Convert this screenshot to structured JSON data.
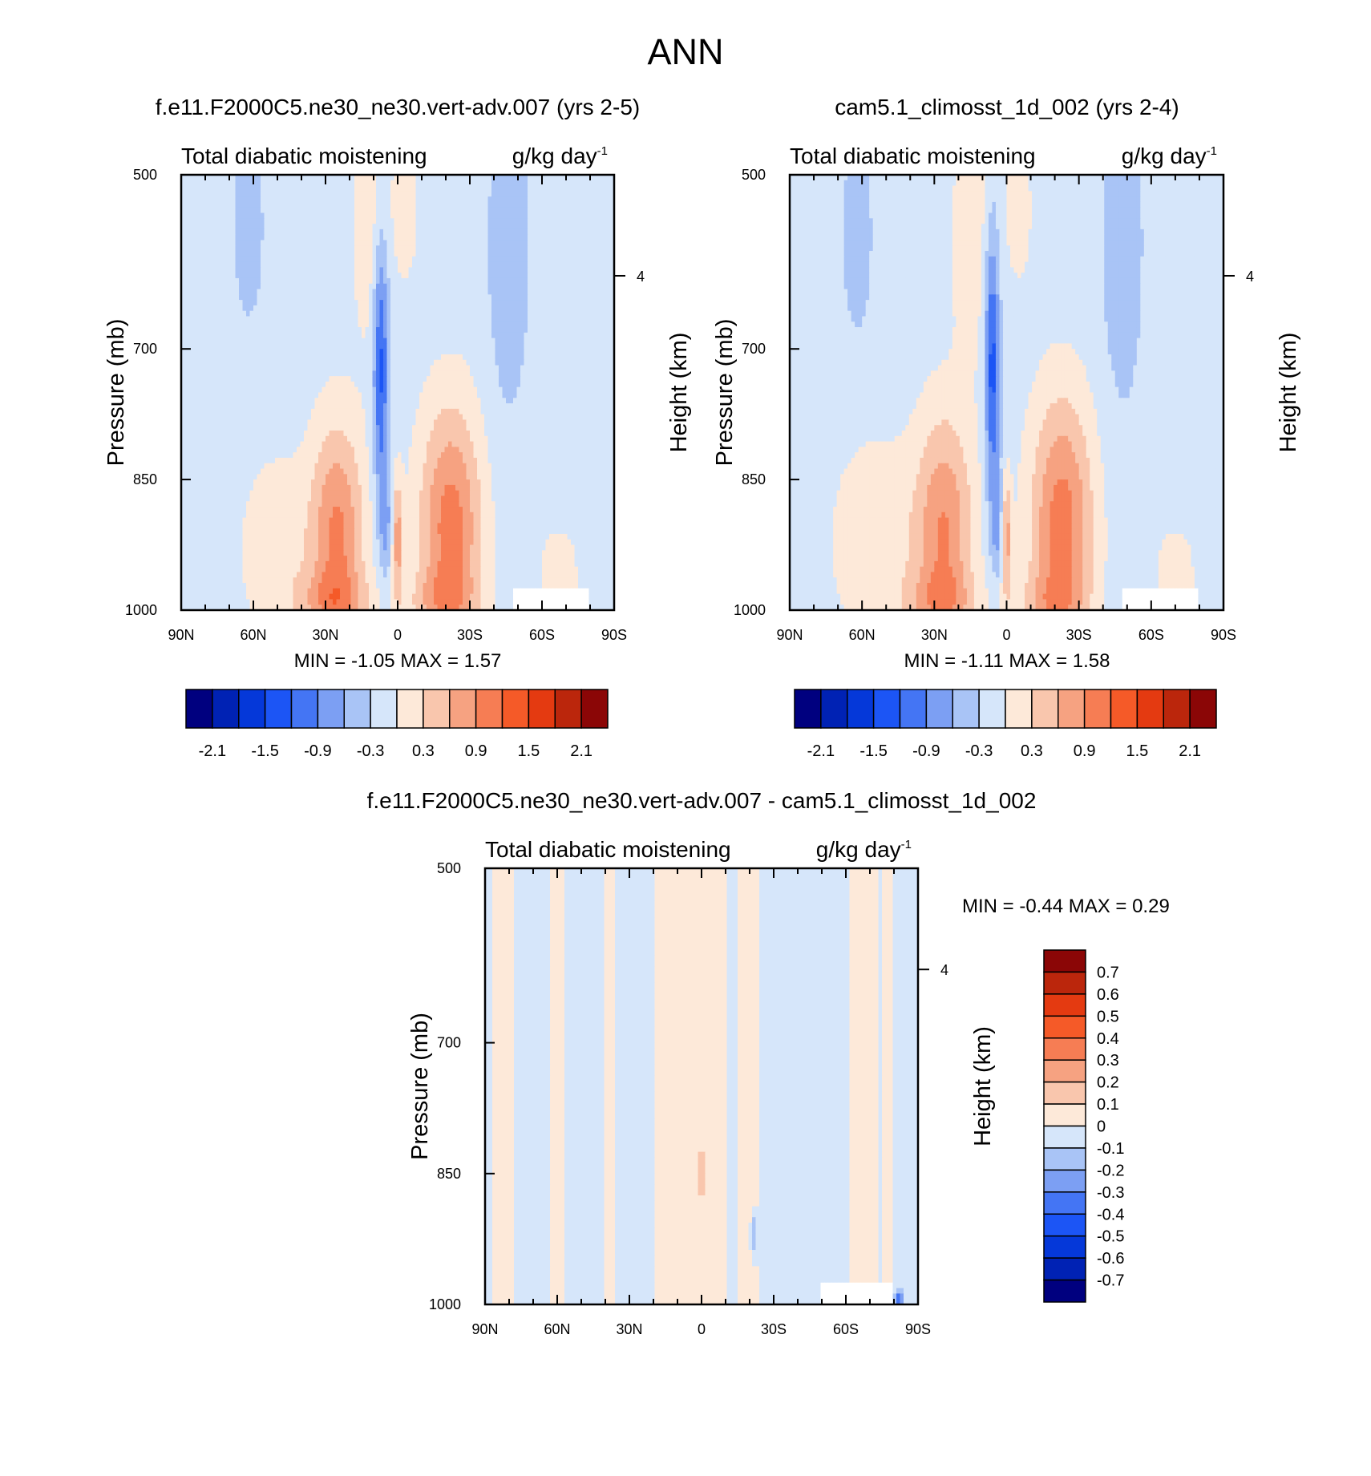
{
  "page_title": "ANN",
  "colors": {
    "palette16": [
      "#00007f",
      "#0022b4",
      "#0538d9",
      "#1c55f5",
      "#4475f4",
      "#7c9ff3",
      "#a9c4f6",
      "#d6e6fa",
      "#fde9d9",
      "#f9c6ad",
      "#f6a281",
      "#f67d54",
      "#f55a28",
      "#e43a11",
      "#bb260c",
      "#8b0606"
    ],
    "palette14": [
      "#00007f",
      "#0022b4",
      "#0538d9",
      "#1c55f5",
      "#4475f4",
      "#7c9ff3",
      "#a9c4f6",
      "#d6e6fa",
      "#fde9d9",
      "#f9c6ad",
      "#f6a281",
      "#f67d54",
      "#f55a28",
      "#c22a0b",
      "#8b0606"
    ]
  },
  "chart_data": [
    {
      "type": "heatmap",
      "title": "f.e11.F2000C5.ne30_ne30.vert-adv.007 (yrs 2-5)",
      "left_label": "Total diabatic moistening",
      "units_label": "g/kg day",
      "units_exponent": "-1",
      "ylabel": "Pressure (mb)",
      "ylabel_right": "Height (km)",
      "y_tick_labels": [
        "500",
        "700",
        "850",
        "1000"
      ],
      "y_ticks_mb": [
        500,
        700,
        850,
        1000
      ],
      "ylim_mb": [
        500,
        1000
      ],
      "height_ticks_km": [
        4
      ],
      "height_tick_labels": [
        "4"
      ],
      "x_tick_labels": [
        "90N",
        "60N",
        "30N",
        "0",
        "30S",
        "60S",
        "90S"
      ],
      "x_ticks_lat": [
        90,
        60,
        30,
        0,
        -30,
        -60,
        -90
      ],
      "xlim_lat": [
        90,
        -90
      ],
      "min_label": "MIN =",
      "min_value": "-1.05",
      "max_label": "MAX =",
      "max_value": "1.57",
      "min": -1.05,
      "max": 1.57,
      "colorbar_levels": [
        -2.1,
        -1.8,
        -1.5,
        -1.2,
        -0.9,
        -0.6,
        -0.3,
        0,
        0.3,
        0.6,
        0.9,
        1.2,
        1.5,
        1.8,
        2.1
      ],
      "colorbar_labels": [
        "-2.1",
        "-1.5",
        "-0.9",
        "-0.3",
        "0.3",
        "0.9",
        "1.5",
        "2.1"
      ],
      "field": {
        "base": -0.15,
        "blobs": [
          {
            "lat": 25,
            "mb": 915,
            "wlat": 11,
            "wmb": 130,
            "amp": 1.1
          },
          {
            "lat": -22,
            "mb": 905,
            "wlat": 13,
            "wmb": 140,
            "amp": 1.2
          },
          {
            "lat": 27,
            "mb": 990,
            "wlat": 16,
            "wmb": 35,
            "amp": 0.55
          },
          {
            "lat": -18,
            "mb": 990,
            "wlat": 14,
            "wmb": 35,
            "amp": 0.45
          },
          {
            "lat": 7,
            "mb": 720,
            "wlat": 3.2,
            "wmb": 150,
            "amp": -1.15
          },
          {
            "lat": 5,
            "mb": 900,
            "wlat": 2.5,
            "wmb": 60,
            "amp": -0.55
          },
          {
            "lat": 0,
            "mb": 920,
            "wlat": 2,
            "wmb": 70,
            "amp": 0.9
          },
          {
            "lat": 12,
            "mb": 560,
            "wlat": 7,
            "wmb": 140,
            "amp": 0.35
          },
          {
            "lat": -3,
            "mb": 540,
            "wlat": 6,
            "wmb": 90,
            "amp": 0.3
          },
          {
            "lat": 50,
            "mb": 930,
            "wlat": 16,
            "wmb": 110,
            "amp": 0.35
          },
          {
            "lat": -46,
            "mb": 590,
            "wlat": 9,
            "wmb": 200,
            "amp": -0.35
          },
          {
            "lat": 62,
            "mb": 560,
            "wlat": 7,
            "wmb": 120,
            "amp": -0.3
          },
          {
            "lat": -67,
            "mb": 960,
            "wlat": 9,
            "wmb": 60,
            "amp": 0.3
          }
        ],
        "mask": {
          "lat_min": -48,
          "lat_max": -80,
          "mb_min": 975
        }
      }
    },
    {
      "type": "heatmap",
      "title": "cam5.1_climosst_1d_002 (yrs 2-4)",
      "left_label": "Total diabatic moistening",
      "units_label": "g/kg day",
      "units_exponent": "-1",
      "ylabel": "Pressure (mb)",
      "ylabel_right": "Height (km)",
      "y_tick_labels": [
        "500",
        "700",
        "850",
        "1000"
      ],
      "y_ticks_mb": [
        500,
        700,
        850,
        1000
      ],
      "ylim_mb": [
        500,
        1000
      ],
      "height_ticks_km": [
        4
      ],
      "height_tick_labels": [
        "4"
      ],
      "x_tick_labels": [
        "90N",
        "60N",
        "30N",
        "0",
        "30S",
        "60S",
        "90S"
      ],
      "x_ticks_lat": [
        90,
        60,
        30,
        0,
        -30,
        -60,
        -90
      ],
      "xlim_lat": [
        90,
        -90
      ],
      "min_label": "MIN =",
      "min_value": "-1.11",
      "max_label": "MAX =",
      "max_value": "1.58",
      "min": -1.11,
      "max": 1.58,
      "colorbar_levels": [
        -2.1,
        -1.8,
        -1.5,
        -1.2,
        -0.9,
        -0.6,
        -0.3,
        0,
        0.3,
        0.6,
        0.9,
        1.2,
        1.5,
        1.8,
        2.1
      ],
      "colorbar_labels": [
        "-2.1",
        "-1.5",
        "-0.9",
        "-0.3",
        "0.3",
        "0.9",
        "1.5",
        "2.1"
      ],
      "field": {
        "base": -0.15,
        "blobs": [
          {
            "lat": 26,
            "mb": 910,
            "wlat": 12,
            "wmb": 135,
            "amp": 1.05
          },
          {
            "lat": -23,
            "mb": 900,
            "wlat": 13,
            "wmb": 145,
            "amp": 1.2
          },
          {
            "lat": 28,
            "mb": 990,
            "wlat": 16,
            "wmb": 35,
            "amp": 0.5
          },
          {
            "lat": -18,
            "mb": 990,
            "wlat": 14,
            "wmb": 35,
            "amp": 0.45
          },
          {
            "lat": 6,
            "mb": 720,
            "wlat": 3,
            "wmb": 150,
            "amp": -1.2
          },
          {
            "lat": 4,
            "mb": 900,
            "wlat": 2.5,
            "wmb": 60,
            "amp": -0.55
          },
          {
            "lat": 0,
            "mb": 920,
            "wlat": 2,
            "wmb": 70,
            "amp": 0.85
          },
          {
            "lat": 15,
            "mb": 570,
            "wlat": 8,
            "wmb": 150,
            "amp": 0.35
          },
          {
            "lat": -5,
            "mb": 540,
            "wlat": 6,
            "wmb": 90,
            "amp": 0.3
          },
          {
            "lat": 55,
            "mb": 920,
            "wlat": 18,
            "wmb": 120,
            "amp": 0.38
          },
          {
            "lat": -48,
            "mb": 580,
            "wlat": 9,
            "wmb": 200,
            "amp": -0.35
          },
          {
            "lat": 62,
            "mb": 570,
            "wlat": 7,
            "wmb": 130,
            "amp": -0.3
          },
          {
            "lat": -70,
            "mb": 960,
            "wlat": 9,
            "wmb": 60,
            "amp": 0.3
          }
        ],
        "mask": {
          "lat_min": -48,
          "lat_max": -80,
          "mb_min": 975
        }
      }
    },
    {
      "type": "heatmap",
      "title": "f.e11.F2000C5.ne30_ne30.vert-adv.007 - cam5.1_climosst_1d_002",
      "left_label": "Total diabatic moistening",
      "units_label": "g/kg day",
      "units_exponent": "-1",
      "ylabel": "Pressure (mb)",
      "ylabel_right": "Height (km)",
      "y_tick_labels": [
        "500",
        "700",
        "850",
        "1000"
      ],
      "y_ticks_mb": [
        500,
        700,
        850,
        1000
      ],
      "ylim_mb": [
        500,
        1000
      ],
      "height_ticks_km": [
        4
      ],
      "height_tick_labels": [
        "4"
      ],
      "x_tick_labels": [
        "90N",
        "60N",
        "30N",
        "0",
        "30S",
        "60S",
        "90S"
      ],
      "x_ticks_lat": [
        90,
        60,
        30,
        0,
        -30,
        -60,
        -90
      ],
      "xlim_lat": [
        90,
        -90
      ],
      "min_label": "MIN =",
      "min_value": "-0.44",
      "max_label": "MAX =",
      "max_value": "0.29",
      "min": -0.44,
      "max": 0.29,
      "colorbar_levels": [
        -0.7,
        -0.6,
        -0.5,
        -0.4,
        -0.3,
        -0.2,
        -0.1,
        0,
        0.1,
        0.2,
        0.3,
        0.4,
        0.5,
        0.6,
        0.7
      ],
      "colorbar_labels": [
        "-0.7",
        "-0.6",
        "-0.5",
        "-0.4",
        "-0.3",
        "-0.2",
        "-0.1",
        "0",
        "0.1",
        "0.2",
        "0.3",
        "0.4",
        "0.5",
        "0.6",
        "0.7"
      ],
      "field": {
        "base": -0.03,
        "bands": [
          {
            "lat": 82,
            "w": 5,
            "amp": 0.07
          },
          {
            "lat": 60,
            "w": 3,
            "amp": 0.06
          },
          {
            "lat": 38,
            "w": 2.5,
            "amp": 0.07
          },
          {
            "lat": 15,
            "w": 5,
            "amp": 0.08
          },
          {
            "lat": 7,
            "w": 2,
            "amp": 0.06
          },
          {
            "lat": -1,
            "w": 5,
            "amp": 0.07
          },
          {
            "lat": -8,
            "w": 3,
            "amp": 0.06
          },
          {
            "lat": -20,
            "w": 5,
            "amp": 0.07
          },
          {
            "lat": -68,
            "w": 6,
            "amp": 0.08
          },
          {
            "lat": -78,
            "w": 2,
            "amp": 0.06
          }
        ],
        "blobs": [
          {
            "lat": 0,
            "mb": 850,
            "wlat": 1.5,
            "wmb": 30,
            "amp": 0.15
          },
          {
            "lat": -22,
            "mb": 920,
            "wlat": 1.5,
            "wmb": 25,
            "amp": -0.22
          },
          {
            "lat": -82,
            "mb": 995,
            "wlat": 2,
            "wmb": 10,
            "amp": -0.35
          }
        ],
        "mask": {
          "lat_min": -50,
          "lat_max": -80,
          "mb_min": 975
        }
      }
    }
  ]
}
